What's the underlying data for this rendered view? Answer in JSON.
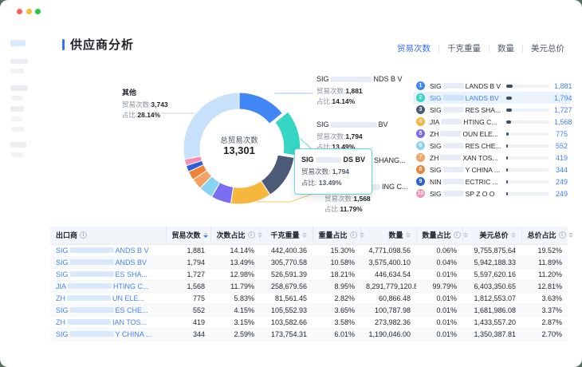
{
  "header": {
    "title": "供应商分析"
  },
  "tabs": [
    {
      "label": "贸易次数",
      "active": true
    },
    {
      "label": "千克重量",
      "active": false
    },
    {
      "label": "数量",
      "active": false
    },
    {
      "label": "美元总价",
      "active": false
    }
  ],
  "chart_data": {
    "type": "donut",
    "title": "供应商分析 - 贸易次数占比",
    "center_label": "总贸易次数",
    "center_value": "13,301",
    "total": 13301,
    "legend_position": "right",
    "slices": [
      {
        "label": "SIG…LANDS B V",
        "value": 1881,
        "pct": 14.14,
        "color": "#4086f4"
      },
      {
        "label": "SIG…LANDS BV",
        "value": 1794,
        "pct": 13.49,
        "color": "#35d6c3",
        "exploded": true
      },
      {
        "label": "SIG…RES SHANG…",
        "value": 1727,
        "pct": 12.98,
        "color": "#4b5b77"
      },
      {
        "label": "JIA…HTING C…",
        "value": 1568,
        "pct": 11.79,
        "color": "#f5b73e"
      },
      {
        "label": "ZH…OUN ELE…",
        "value": 775,
        "pct": 5.83,
        "color": "#7a6ef0"
      },
      {
        "label": "SIG…RES CHE…",
        "value": 552,
        "pct": 4.15,
        "color": "#86d4f2"
      },
      {
        "label": "ZH…XAN TOS…",
        "value": 419,
        "pct": 3.15,
        "color": "#f2a264"
      },
      {
        "label": "SIG…Y CHINA…",
        "value": 344,
        "pct": 2.59,
        "color": "#ef8137"
      },
      {
        "label": "NIN…ECTRIC…",
        "value": 249,
        "pct": 1.87,
        "color": "#2d5dd8"
      },
      {
        "label": "SIG…SP Z O O",
        "value": 249,
        "pct": 1.87,
        "color": "#f48fb5"
      },
      {
        "label": "其他",
        "value": 3743,
        "pct": 28.14,
        "color": "#c7e1fb"
      }
    ]
  },
  "callouts": {
    "other": {
      "name": "其他",
      "trades_label": "贸易次数:",
      "trades": "3,743",
      "pct_label": "占比:",
      "pct": "28.14%"
    },
    "c1": {
      "prefix": "SIG",
      "suffix": "NDS B V",
      "trades_label": "贸易次数:",
      "trades": "1,881",
      "pct_label": "占比:",
      "pct": "14.14%"
    },
    "c2": {
      "prefix": "SIG",
      "suffix": "BV",
      "trades_label": "贸易次数:",
      "trades": "1,794",
      "pct_label": "占比:",
      "pct": "13.49%"
    },
    "c3_partial": "SHANG...",
    "c4": {
      "prefix": "JIA",
      "suffix": "ING C...",
      "trades_label": "贸易次数:",
      "trades": "1,568",
      "pct_label": "占比:",
      "pct": "11.79%"
    }
  },
  "tooltip": {
    "prefix": "SIG",
    "suffix": "DS BV",
    "trades_label": "贸易次数:",
    "trades": "1,794",
    "pct_label": "占比:",
    "pct": "13.49%"
  },
  "ranking": {
    "total": 13301,
    "rows": [
      {
        "rank": 1,
        "prefix": "SIG",
        "suffix": "LANDS B V",
        "value": "1,881",
        "num": 1881,
        "color": "#4086f4",
        "highlight": false
      },
      {
        "rank": 2,
        "prefix": "SIG",
        "suffix": "LANDS BV",
        "value": "1,794",
        "num": 1794,
        "color": "#35d6c3",
        "highlight": true
      },
      {
        "rank": 3,
        "prefix": "SIG",
        "suffix": "RES SHA...",
        "value": "1,727",
        "num": 1727,
        "color": "#4b5b77",
        "highlight": false
      },
      {
        "rank": 4,
        "prefix": "JIA",
        "suffix": "HTING C...",
        "value": "1,568",
        "num": 1568,
        "color": "#f5b73e",
        "highlight": false
      },
      {
        "rank": 5,
        "prefix": "ZH",
        "suffix": "OUN ELE...",
        "value": "775",
        "num": 775,
        "color": "#7a6ef0",
        "highlight": false
      },
      {
        "rank": 6,
        "prefix": "SIG",
        "suffix": "RES CHE...",
        "value": "552",
        "num": 552,
        "color": "#86d4f2",
        "highlight": false
      },
      {
        "rank": 7,
        "prefix": "ZH",
        "suffix": "XAN TOS...",
        "value": "419",
        "num": 419,
        "color": "#f2a264",
        "highlight": false
      },
      {
        "rank": 8,
        "prefix": "SIG",
        "suffix": "Y CHINA ...",
        "value": "344",
        "num": 344,
        "color": "#ef8137",
        "highlight": false
      },
      {
        "rank": 9,
        "prefix": "NIN",
        "suffix": "ECTRIC ...",
        "value": "249",
        "num": 249,
        "color": "#2d5dd8",
        "highlight": false
      },
      {
        "rank": 10,
        "prefix": "SIG",
        "suffix": "SP Z O O",
        "value": "249",
        "num": 249,
        "color": "#f48fb5",
        "highlight": false
      }
    ]
  },
  "table": {
    "columns": [
      {
        "label": "出口商",
        "info": true,
        "sort": false,
        "sort_active": ""
      },
      {
        "label": "贸易次数",
        "info": false,
        "sort": true,
        "sort_active": "desc"
      },
      {
        "label": "次数占比",
        "info": true,
        "sort": true,
        "sort_active": ""
      },
      {
        "label": "千克重量",
        "info": false,
        "sort": true,
        "sort_active": ""
      },
      {
        "label": "重量占比",
        "info": true,
        "sort": true,
        "sort_active": ""
      },
      {
        "label": "数量",
        "info": false,
        "sort": true,
        "sort_active": ""
      },
      {
        "label": "数量占比",
        "info": true,
        "sort": true,
        "sort_active": ""
      },
      {
        "label": "美元总价",
        "info": false,
        "sort": true,
        "sort_active": ""
      },
      {
        "label": "总价占比",
        "info": true,
        "sort": true,
        "sort_active": ""
      }
    ],
    "rows": [
      {
        "prefix": "SIG",
        "suffix": "ANDS B V",
        "values": [
          "1,881",
          "14.14%",
          "442,400.36",
          "15.30%",
          "4,771,098.56",
          "0.06%",
          "9,755,875.64",
          "19.52%"
        ]
      },
      {
        "prefix": "SIG",
        "suffix": "ANDS BV",
        "values": [
          "1,794",
          "13.49%",
          "305,770.58",
          "10.58%",
          "3,575,400.10",
          "0.04%",
          "5,942,188.33",
          "11.89%"
        ]
      },
      {
        "prefix": "SIG",
        "suffix": "ES SHA...",
        "values": [
          "1,727",
          "12.98%",
          "526,591.39",
          "18.21%",
          "446,634.54",
          "0.01%",
          "5,597,620.16",
          "11.20%"
        ]
      },
      {
        "prefix": "JIA",
        "suffix": "HTING C...",
        "values": [
          "1,568",
          "11.79%",
          "258,679.56",
          "8.95%",
          "8,291,779,120.81",
          "99.79%",
          "6,403,350.65",
          "12.81%"
        ]
      },
      {
        "prefix": "ZH",
        "suffix": "UN ELE...",
        "values": [
          "775",
          "5.83%",
          "81,561.45",
          "2.82%",
          "60,866.48",
          "0.01%",
          "1,812,553.07",
          "3.63%"
        ]
      },
      {
        "prefix": "SIG",
        "suffix": "ES CHE...",
        "values": [
          "552",
          "4.15%",
          "105,552.93",
          "3.65%",
          "100,787.98",
          "0.01%",
          "1,681,986.08",
          "3.37%"
        ]
      },
      {
        "prefix": "ZH",
        "suffix": "IAN TOS...",
        "values": [
          "419",
          "3.15%",
          "103,582.66",
          "3.58%",
          "273,982.36",
          "0.01%",
          "1,433,557.20",
          "2.87%"
        ]
      },
      {
        "prefix": "SIG",
        "suffix": "Y CHINA ...",
        "values": [
          "344",
          "2.59%",
          "173,754.31",
          "6.01%",
          "1,190,046.00",
          "0.01%",
          "1,350,387.81",
          "2.70%"
        ]
      }
    ]
  }
}
